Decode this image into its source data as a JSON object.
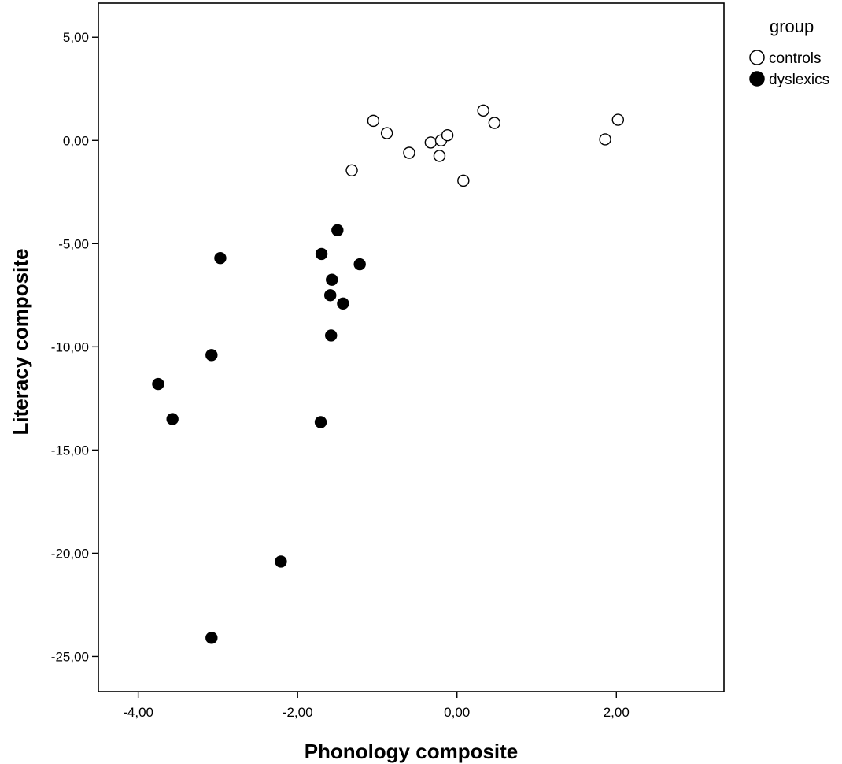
{
  "chart_data": {
    "type": "scatter",
    "xlabel": "Phonology composite",
    "ylabel": "Literacy composite",
    "xlim": [
      -4.5,
      3.35
    ],
    "ylim": [
      -26.7,
      6.65
    ],
    "x_ticks": [
      -4,
      -2,
      0,
      2
    ],
    "x_tick_labels": [
      "-4,00",
      "-2,00",
      "0,00",
      "2,00"
    ],
    "y_ticks": [
      5,
      0,
      -5,
      -10,
      -15,
      -20,
      -25
    ],
    "y_tick_labels": [
      "5,00",
      "0,00",
      "-5,00",
      "-10,00",
      "-15,00",
      "-20,00",
      "-25,00"
    ],
    "grid": false,
    "legend": {
      "title": "group",
      "placement": "outside-right-top"
    },
    "series": [
      {
        "name": "controls",
        "marker": "open-circle",
        "color": "#000000",
        "points": [
          {
            "x": -1.05,
            "y": 0.95
          },
          {
            "x": -0.88,
            "y": 0.35
          },
          {
            "x": -1.32,
            "y": -1.45
          },
          {
            "x": -0.6,
            "y": -0.6
          },
          {
            "x": -0.33,
            "y": -0.1
          },
          {
            "x": -0.2,
            "y": 0.0
          },
          {
            "x": -0.12,
            "y": 0.25
          },
          {
            "x": -0.22,
            "y": -0.75
          },
          {
            "x": 0.08,
            "y": -1.95
          },
          {
            "x": 0.33,
            "y": 1.45
          },
          {
            "x": 0.47,
            "y": 0.85
          },
          {
            "x": 1.86,
            "y": 0.05
          },
          {
            "x": 2.02,
            "y": 1.0
          }
        ]
      },
      {
        "name": "dyslexics",
        "marker": "filled-circle",
        "color": "#000000",
        "points": [
          {
            "x": -1.5,
            "y": -4.35
          },
          {
            "x": -1.7,
            "y": -5.5
          },
          {
            "x": -1.22,
            "y": -6.0
          },
          {
            "x": -2.97,
            "y": -5.7
          },
          {
            "x": -1.57,
            "y": -6.75
          },
          {
            "x": -1.59,
            "y": -7.5
          },
          {
            "x": -1.43,
            "y": -7.9
          },
          {
            "x": -1.58,
            "y": -9.45
          },
          {
            "x": -3.08,
            "y": -10.4
          },
          {
            "x": -3.75,
            "y": -11.8
          },
          {
            "x": -3.57,
            "y": -13.5
          },
          {
            "x": -1.71,
            "y": -13.65
          },
          {
            "x": -2.21,
            "y": -20.4
          },
          {
            "x": -3.08,
            "y": -24.1
          }
        ]
      }
    ]
  }
}
